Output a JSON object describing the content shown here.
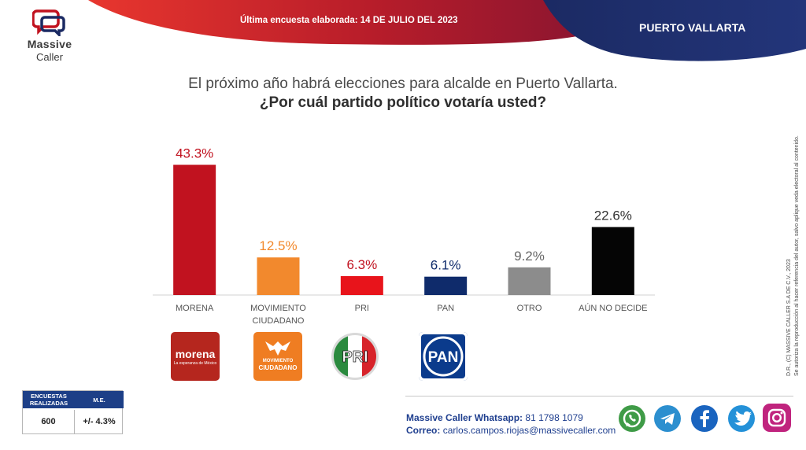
{
  "header": {
    "date_label": "Última encuesta elaborada:",
    "date_value": "14 DE JULIO DEL 2023",
    "city": "PUERTO VALLARTA"
  },
  "logo": {
    "line1": "Massive",
    "line2": "Caller"
  },
  "question": {
    "line1": "El próximo año habrá elecciones para alcalde en Puerto Vallarta.",
    "line2": "¿Por cuál partido político votaría usted?"
  },
  "chart_data": {
    "type": "bar",
    "categories": [
      "MORENA",
      "MOVIMIENTO CIUDADANO",
      "PRI",
      "PAN",
      "OTRO",
      "AÚN NO DECIDE"
    ],
    "category_lines": [
      [
        "MORENA"
      ],
      [
        "MOVIMIENTO",
        "CIUDADANO"
      ],
      [
        "PRI"
      ],
      [
        "PAN"
      ],
      [
        "OTRO"
      ],
      [
        "AÚN NO DECIDE"
      ]
    ],
    "values": [
      43.3,
      12.5,
      6.3,
      6.1,
      9.2,
      22.6
    ],
    "value_labels": [
      "43.3%",
      "12.5%",
      "6.3%",
      "6.1%",
      "9.2%",
      "22.6%"
    ],
    "colors": [
      "#c1121f",
      "#f2892d",
      "#e8141b",
      "#0f2b6b",
      "#8c8c8c",
      "#050505"
    ],
    "label_colors": [
      "#c1121f",
      "#f2892d",
      "#c1121f",
      "#0f2b6b",
      "#666666",
      "#333333"
    ],
    "ylim": [
      0,
      45
    ],
    "grid": false
  },
  "party_logos": {
    "morena": {
      "name": "morena",
      "tagline": "La esperanza de México"
    },
    "mc": {
      "line1": "MOVIMIENTO",
      "line2": "CIUDADANO"
    },
    "pri": {
      "name": "PRI"
    },
    "pan": {
      "name": "PAN"
    }
  },
  "sample": {
    "h1_line1": "ENCUESTAS",
    "h1_line2": "REALIZADAS",
    "h2": "M.E.",
    "v1": "600",
    "v2": "+/- 4.3%"
  },
  "footer": {
    "whatsapp_label": "Massive Caller Whatsapp:",
    "whatsapp_number": "81 1798 1079",
    "email_label": "Correo:",
    "email": "carlos.campos.riojas@massivecaller.com"
  },
  "social": [
    "whatsapp-icon",
    "telegram-icon",
    "facebook-icon",
    "twitter-icon",
    "instagram-icon"
  ],
  "disclaimer": {
    "line1": "D.R., (C) MASSIVE CALLER S.A DE C.V., 2023",
    "line2": "Se autoriza la reproducción al hacer referencia del autor, salvo aplique veda electoral al contenido."
  }
}
